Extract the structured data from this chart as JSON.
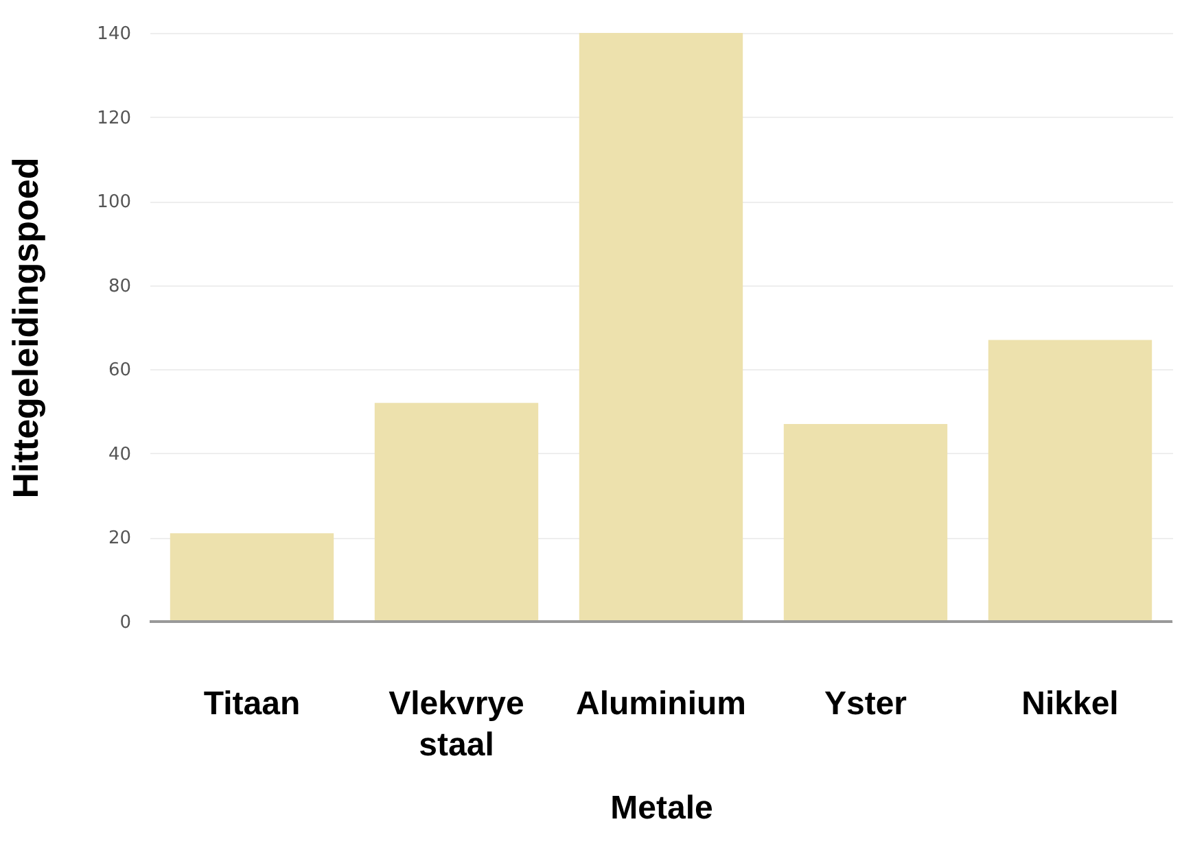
{
  "chart_data": {
    "type": "bar",
    "xlabel": "Metale",
    "ylabel": "Hittegeleidingspoed",
    "categories": [
      "Titaan",
      "Vlekvrye staal",
      "Aluminium",
      "Yster",
      "Nikkel"
    ],
    "values": [
      21,
      52,
      140,
      47,
      67
    ],
    "color": "#ede1ad",
    "ylim": [
      0,
      140
    ],
    "yticks": [
      0,
      20,
      40,
      60,
      80,
      100,
      120,
      140
    ],
    "grid": "y"
  }
}
